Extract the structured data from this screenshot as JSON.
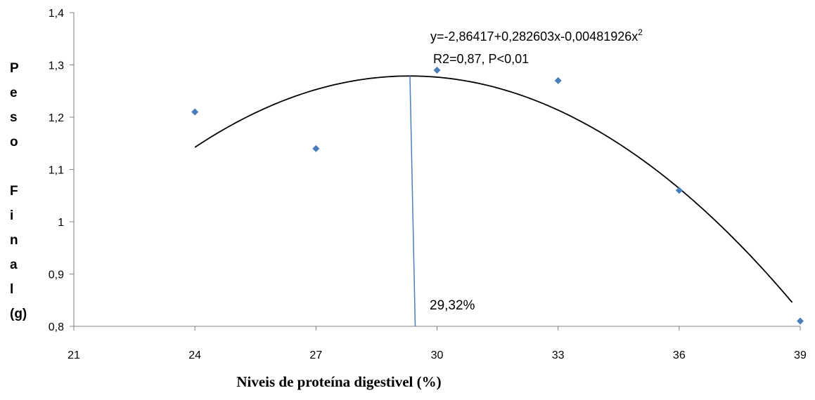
{
  "chart_data": {
    "type": "scatter",
    "title": "",
    "xlabel": "Niveis de proteína digestivel (%)",
    "ylabel_lines": [
      "P",
      "e",
      "s",
      "o",
      "",
      "F",
      "i",
      "n",
      "a",
      "l",
      "(g)"
    ],
    "xlim": [
      21,
      39
    ],
    "ylim": [
      0.8,
      1.4
    ],
    "x_ticks": [
      21,
      24,
      27,
      30,
      33,
      36,
      39
    ],
    "x_tick_labels": [
      "21",
      "24",
      "27",
      "30",
      "33",
      "36",
      "39"
    ],
    "y_ticks": [
      0.8,
      0.9,
      1.0,
      1.1,
      1.2,
      1.3,
      1.4
    ],
    "y_tick_labels": [
      "0,8",
      "0,9",
      "1",
      "1,1",
      "1,2",
      "1,3",
      "1,4"
    ],
    "grid": false,
    "series": [
      {
        "x": [
          24,
          27,
          30,
          33,
          36,
          39
        ],
        "y": [
          1.21,
          1.14,
          1.29,
          1.27,
          1.06,
          0.81
        ]
      }
    ],
    "fit": {
      "equation_text": "y=-2,86417+0,282603x-0,00481926x",
      "equation_superscript": "2",
      "stats_text": "R2=0,87, P<0,01",
      "coefficients": [
        -2.86417,
        0.282603,
        -0.00481926
      ],
      "x_range": [
        24,
        38.8
      ]
    },
    "optimum": {
      "x": 29.32,
      "label": "29,32%"
    },
    "colors": {
      "marker": "#4a7ebb",
      "fit_line": "#000000",
      "optimum_line": "#4a7ebb",
      "axis": "#808080"
    }
  }
}
